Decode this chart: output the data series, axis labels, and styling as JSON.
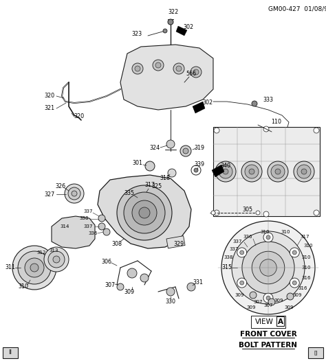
{
  "title": "GM00-427  01/08/99",
  "background_color": "#ffffff",
  "line_color": "#1a1a1a",
  "text_color": "#000000",
  "view_label": "VIEW",
  "view_box_label": "A",
  "view_sublabel1": "FRONT COVER",
  "view_sublabel2": "BOLT PATTERN",
  "figsize": [
    4.74,
    5.26
  ],
  "dpi": 100,
  "header_fontsize": 6.5,
  "label_fontsize": 5.8,
  "small_fontsize": 5.0
}
